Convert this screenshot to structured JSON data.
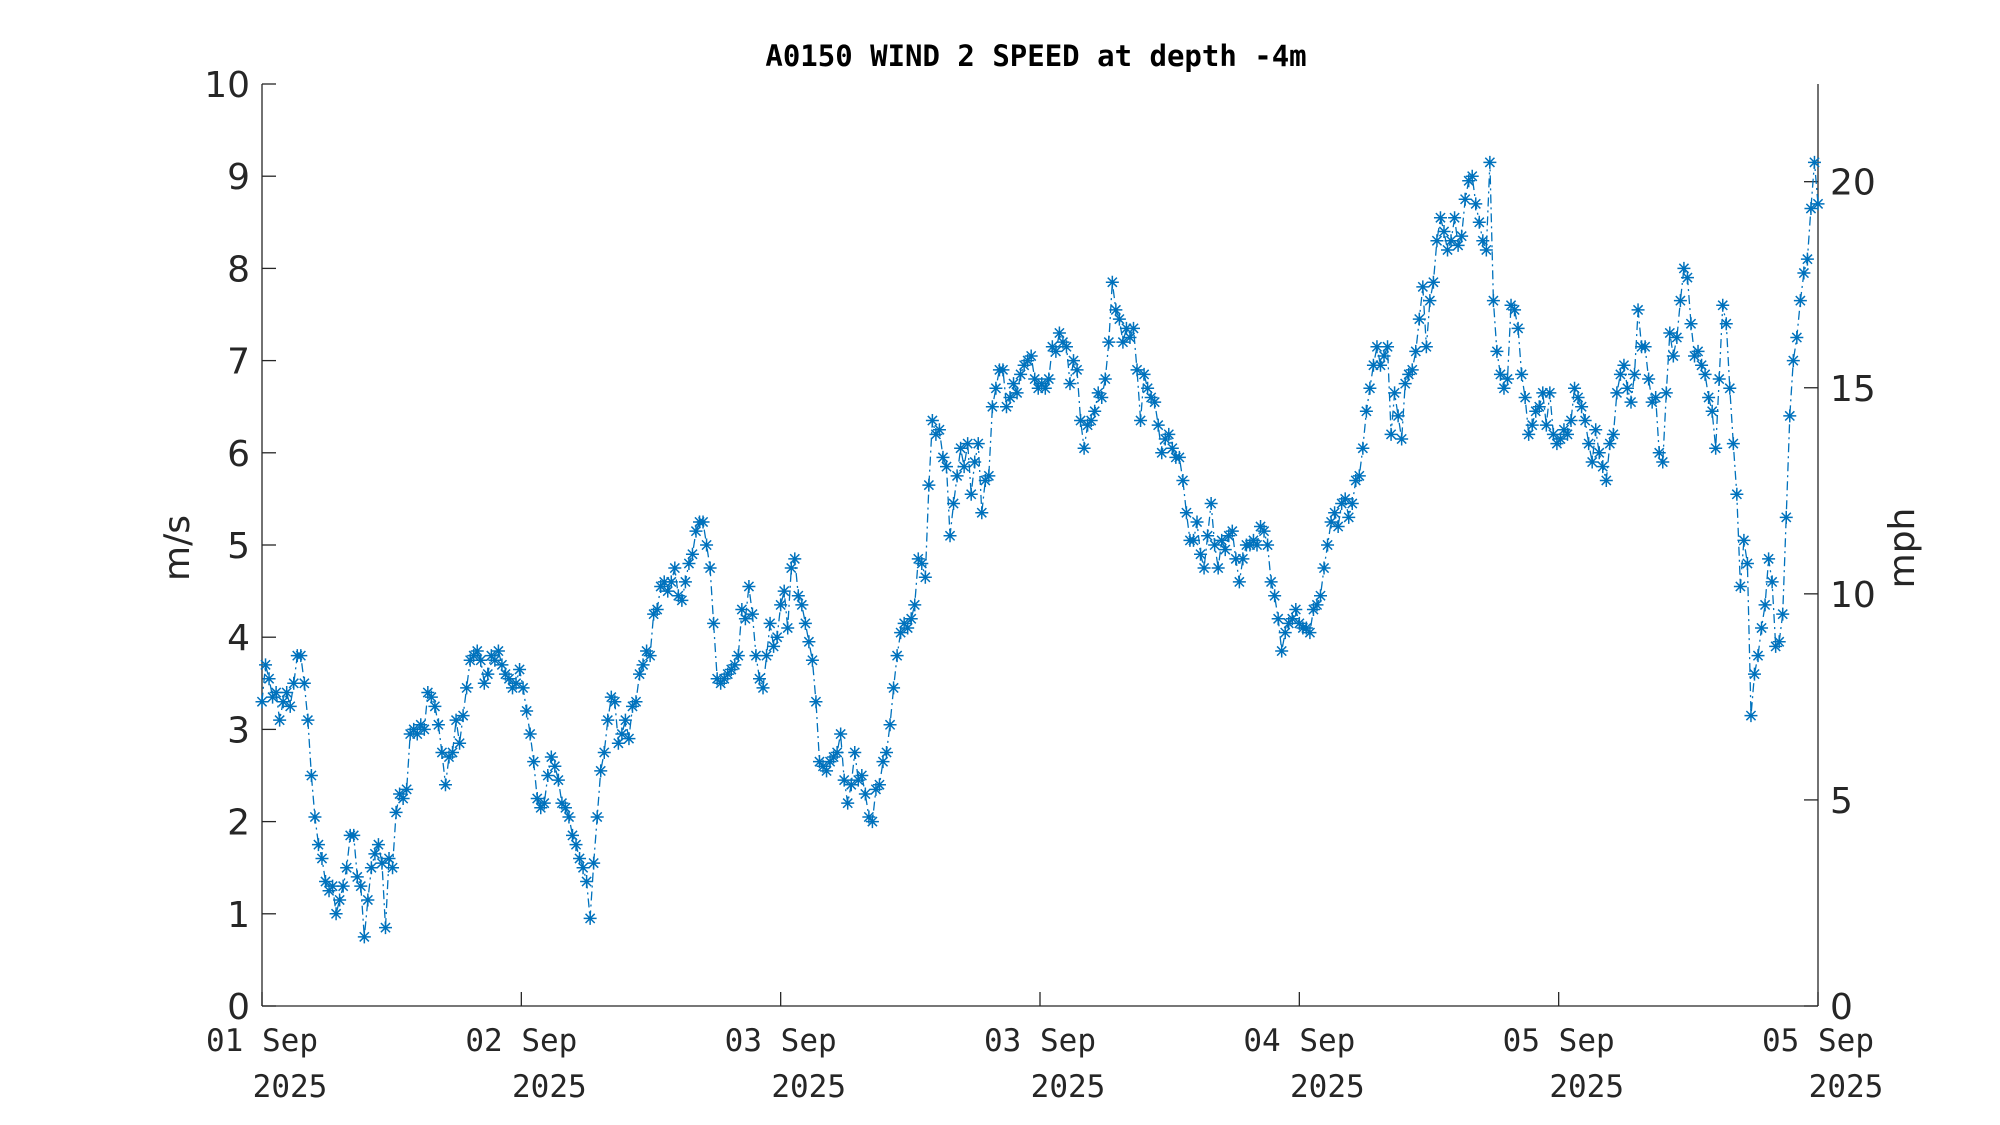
{
  "chart_data": {
    "type": "line",
    "title": "A0150 WIND 2 SPEED at depth -4m",
    "ylabel": "m/s",
    "ylabel_right": "mph",
    "ylim": [
      0,
      10
    ],
    "ylim_right": [
      0,
      22.37
    ],
    "yticks": [
      "0",
      "1",
      "2",
      "3",
      "4",
      "5",
      "6",
      "7",
      "8",
      "9",
      "10"
    ],
    "yticks_right": [
      "0",
      "5",
      "10",
      "15",
      "20"
    ],
    "xticks": [
      {
        "line1": "01 Sep",
        "line2": "2025"
      },
      {
        "line1": "02 Sep",
        "line2": "2025"
      },
      {
        "line1": "03 Sep",
        "line2": "2025"
      },
      {
        "line1": "03 Sep",
        "line2": "2025"
      },
      {
        "line1": "04 Sep",
        "line2": "2025"
      },
      {
        "line1": "05 Sep",
        "line2": "2025"
      },
      {
        "line1": "05 Sep",
        "line2": "2025"
      }
    ],
    "marker": "asterisk",
    "line_style": "dash-dot",
    "series_color": "#0072BD",
    "grid": false,
    "series": [
      {
        "x_range": [
          "01 Sep 2025",
          "05 Sep 2025"
        ],
        "values": [
          3.3,
          3.7,
          3.55,
          3.35,
          3.4,
          3.1,
          3.3,
          3.4,
          3.25,
          3.5,
          3.8,
          3.8,
          3.5,
          3.1,
          2.5,
          2.05,
          1.75,
          1.6,
          1.35,
          1.25,
          1.3,
          1.0,
          1.15,
          1.3,
          1.5,
          1.85,
          1.85,
          1.4,
          1.3,
          0.75,
          1.15,
          1.5,
          1.65,
          1.75,
          1.55,
          0.85,
          1.6,
          1.5,
          2.1,
          2.3,
          2.25,
          2.35,
          2.95,
          3.0,
          2.95,
          3.05,
          3.0,
          3.4,
          3.35,
          3.25,
          3.05,
          2.75,
          2.4,
          2.7,
          2.75,
          3.1,
          2.85,
          3.15,
          3.45,
          3.75,
          3.8,
          3.85,
          3.75,
          3.5,
          3.6,
          3.8,
          3.75,
          3.85,
          3.7,
          3.6,
          3.55,
          3.45,
          3.5,
          3.65,
          3.45,
          3.2,
          2.95,
          2.65,
          2.25,
          2.15,
          2.2,
          2.5,
          2.7,
          2.6,
          2.45,
          2.2,
          2.15,
          2.05,
          1.85,
          1.75,
          1.6,
          1.5,
          1.35,
          0.95,
          1.55,
          2.05,
          2.55,
          2.75,
          3.1,
          3.35,
          3.3,
          2.85,
          2.95,
          3.1,
          2.9,
          3.25,
          3.3,
          3.6,
          3.7,
          3.85,
          3.8,
          4.25,
          4.3,
          4.55,
          4.6,
          4.5,
          4.6,
          4.75,
          4.45,
          4.4,
          4.6,
          4.8,
          4.9,
          5.15,
          5.25,
          5.25,
          5.0,
          4.75,
          4.15,
          3.55,
          3.5,
          3.55,
          3.6,
          3.65,
          3.7,
          3.8,
          4.3,
          4.2,
          4.55,
          4.25,
          3.8,
          3.55,
          3.45,
          3.8,
          4.15,
          3.9,
          4.0,
          4.35,
          4.5,
          4.1,
          4.75,
          4.85,
          4.45,
          4.35,
          4.15,
          3.95,
          3.75,
          3.3,
          2.65,
          2.6,
          2.55,
          2.65,
          2.7,
          2.75,
          2.95,
          2.45,
          2.2,
          2.4,
          2.75,
          2.45,
          2.5,
          2.3,
          2.05,
          2.0,
          2.35,
          2.4,
          2.65,
          2.75,
          3.05,
          3.45,
          3.8,
          4.05,
          4.15,
          4.1,
          4.2,
          4.35,
          4.85,
          4.8,
          4.65,
          5.65,
          6.35,
          6.2,
          6.25,
          5.95,
          5.85,
          5.1,
          5.45,
          5.75,
          6.05,
          5.85,
          6.1,
          5.55,
          5.9,
          6.1,
          5.35,
          5.7,
          5.75,
          6.5,
          6.7,
          6.9,
          6.9,
          6.5,
          6.6,
          6.75,
          6.65,
          6.85,
          6.95,
          7.0,
          7.05,
          6.8,
          6.7,
          6.75,
          6.7,
          6.8,
          7.15,
          7.1,
          7.3,
          7.2,
          7.15,
          6.75,
          7.0,
          6.9,
          6.35,
          6.05,
          6.3,
          6.35,
          6.45,
          6.65,
          6.6,
          6.8,
          7.2,
          7.85,
          7.55,
          7.45,
          7.2,
          7.35,
          7.25,
          7.35,
          6.9,
          6.35,
          6.85,
          6.7,
          6.6,
          6.55,
          6.3,
          6.0,
          6.15,
          6.2,
          6.05,
          5.95,
          5.95,
          5.7,
          5.35,
          5.05,
          5.05,
          5.25,
          4.9,
          4.75,
          5.1,
          5.45,
          5.0,
          4.75,
          5.05,
          4.95,
          5.1,
          5.15,
          4.85,
          4.6,
          4.85,
          5.0,
          5.0,
          5.05,
          5.0,
          5.2,
          5.15,
          5.0,
          4.6,
          4.45,
          4.2,
          3.85,
          4.05,
          4.15,
          4.2,
          4.3,
          4.15,
          4.1,
          4.1,
          4.05,
          4.3,
          4.35,
          4.45,
          4.75,
          5.0,
          5.25,
          5.35,
          5.2,
          5.45,
          5.5,
          5.3,
          5.45,
          5.7,
          5.75,
          6.05,
          6.45,
          6.7,
          6.95,
          7.15,
          6.95,
          7.05,
          7.15,
          6.2,
          6.65,
          6.4,
          6.15,
          6.75,
          6.85,
          6.9,
          7.1,
          7.45,
          7.8,
          7.15,
          7.65,
          7.85,
          8.3,
          8.55,
          8.4,
          8.2,
          8.3,
          8.55,
          8.25,
          8.35,
          8.75,
          8.95,
          9.0,
          8.7,
          8.5,
          8.3,
          8.2,
          9.15,
          7.65,
          7.1,
          6.85,
          6.7,
          6.8,
          7.6,
          7.55,
          7.35,
          6.85,
          6.6,
          6.2,
          6.3,
          6.45,
          6.5,
          6.65,
          6.3,
          6.65,
          6.2,
          6.1,
          6.15,
          6.25,
          6.2,
          6.35,
          6.7,
          6.6,
          6.5,
          6.35,
          6.1,
          5.9,
          6.25,
          6.0,
          5.85,
          5.7,
          6.1,
          6.2,
          6.65,
          6.85,
          6.95,
          6.7,
          6.55,
          6.85,
          7.55,
          7.15,
          7.15,
          6.8,
          6.55,
          6.6,
          6.0,
          5.9,
          6.65,
          7.3,
          7.05,
          7.25,
          7.65,
          8.0,
          7.9,
          7.4,
          7.05,
          7.1,
          6.95,
          6.85,
          6.6,
          6.45,
          6.05,
          6.8,
          7.6,
          7.4,
          6.7,
          6.1,
          5.55,
          4.55,
          5.05,
          4.8,
          3.15,
          3.6,
          3.8,
          4.1,
          4.35,
          4.85,
          4.6,
          3.9,
          3.95,
          4.25,
          5.3,
          6.4,
          7.0,
          7.25,
          7.65,
          7.95,
          8.1,
          8.65,
          9.15,
          8.7
        ]
      }
    ]
  }
}
